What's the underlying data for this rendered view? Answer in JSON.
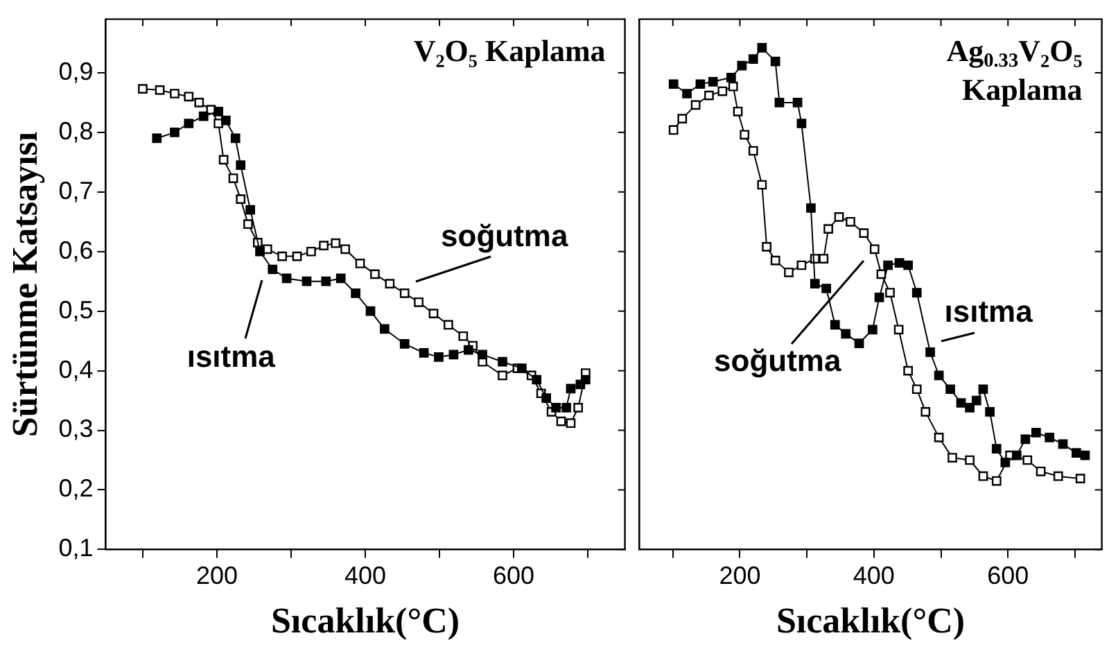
{
  "chart_data": [
    {
      "type": "line",
      "ylabel": "Sürtünme Katsayısı",
      "xlabel": "Sıcaklık(°C)",
      "annotations": [
        "V₂O₅ Kaplama"
      ],
      "xlim": [
        50,
        750
      ],
      "xticks": [
        {
          "value": 100,
          "label": null
        },
        200,
        {
          "value": 300,
          "label": null
        },
        400,
        {
          "value": 500,
          "label": null
        },
        600,
        {
          "value": 700,
          "label": null
        }
      ],
      "ylim": [
        0.1,
        0.99
      ],
      "yticks": [
        {
          "value": 0.1,
          "label": "0,1"
        },
        {
          "value": 0.2,
          "label": "0,2"
        },
        {
          "value": 0.3,
          "label": "0,3"
        },
        {
          "value": 0.4,
          "label": "0,4"
        },
        {
          "value": 0.5,
          "label": "0,5"
        },
        {
          "value": 0.6,
          "label": "0,6"
        },
        {
          "value": 0.7,
          "label": "0,7"
        },
        {
          "value": 0.8,
          "label": "0,8"
        },
        {
          "value": 0.9,
          "label": "0,9"
        }
      ],
      "marker": "square",
      "line_style": "solid",
      "grid": false,
      "series": [
        {
          "name": "ısıtma",
          "color": "#000000",
          "x": [
            119,
            143,
            162,
            182,
            202,
            212,
            225,
            232,
            245,
            258,
            275,
            294,
            321,
            347,
            367,
            387,
            407,
            426,
            453,
            479,
            499,
            519,
            539,
            558,
            585,
            611,
            631,
            644,
            657,
            671,
            677,
            690,
            697
          ],
          "values": [
            0.79,
            0.8,
            0.815,
            0.827,
            0.835,
            0.82,
            0.79,
            0.745,
            0.67,
            0.6,
            0.57,
            0.555,
            0.55,
            0.55,
            0.555,
            0.53,
            0.5,
            0.47,
            0.445,
            0.43,
            0.423,
            0.427,
            0.435,
            0.427,
            0.415,
            0.404,
            0.385,
            0.354,
            0.338,
            0.338,
            0.37,
            0.377,
            0.385
          ]
        },
        {
          "name": "soğutma",
          "color": "#000000",
          "x": [
            100,
            123,
            143,
            162,
            176,
            192,
            202,
            209,
            222,
            232,
            242,
            255,
            268,
            288,
            308,
            327,
            344,
            360,
            373,
            393,
            413,
            433,
            453,
            472,
            492,
            512,
            532,
            545,
            558,
            585,
            605,
            624,
            637,
            651,
            664,
            677,
            687,
            697
          ],
          "values": [
            0.873,
            0.871,
            0.865,
            0.86,
            0.85,
            0.838,
            0.815,
            0.754,
            0.723,
            0.688,
            0.646,
            0.615,
            0.604,
            0.592,
            0.592,
            0.6,
            0.61,
            0.614,
            0.604,
            0.58,
            0.562,
            0.546,
            0.53,
            0.515,
            0.496,
            0.477,
            0.458,
            0.442,
            0.415,
            0.392,
            0.404,
            0.392,
            0.362,
            0.331,
            0.315,
            0.312,
            0.338,
            0.396
          ]
        }
      ]
    },
    {
      "type": "line",
      "xlabel": "Sıcaklık(°C)",
      "annotations": [
        "Ag$_{0.33}$V₂O₅ Kaplama"
      ],
      "xlim": [
        50,
        740
      ],
      "xticks": [
        {
          "value": 100,
          "label": null
        },
        200,
        {
          "value": 300,
          "label": null
        },
        400,
        {
          "value": 500,
          "label": null
        },
        600,
        {
          "value": 700,
          "label": null
        }
      ],
      "ylim": [
        0.1,
        0.99
      ],
      "yticks": [
        0.1,
        0.2,
        0.3,
        0.4,
        0.5,
        0.6,
        0.7,
        0.8,
        0.9
      ],
      "tick_labels": "x",
      "marker": "square",
      "line_style": "solid",
      "grid": false,
      "series": [
        {
          "name": "ısıtma",
          "color": "#000000",
          "x": [
            101,
            121,
            141,
            160,
            187,
            203,
            220,
            233,
            253,
            259,
            286,
            292,
            306,
            312,
            329,
            342,
            358,
            378,
            398,
            408,
            421,
            438,
            451,
            464,
            484,
            497,
            514,
            530,
            543,
            553,
            563,
            573,
            583,
            596,
            613,
            626,
            642,
            662,
            682,
            702,
            715
          ],
          "values": [
            0.881,
            0.865,
            0.881,
            0.885,
            0.892,
            0.912,
            0.923,
            0.942,
            0.919,
            0.85,
            0.85,
            0.815,
            0.673,
            0.546,
            0.538,
            0.477,
            0.462,
            0.446,
            0.469,
            0.523,
            0.577,
            0.581,
            0.577,
            0.531,
            0.431,
            0.392,
            0.369,
            0.346,
            0.338,
            0.35,
            0.369,
            0.331,
            0.269,
            0.246,
            0.258,
            0.285,
            0.296,
            0.288,
            0.277,
            0.262,
            0.258
          ]
        },
        {
          "name": "soğutma",
          "color": "#000000",
          "x": [
            101,
            114,
            134,
            154,
            174,
            190,
            197,
            207,
            220,
            233,
            240,
            253,
            273,
            292,
            312,
            325,
            332,
            348,
            365,
            385,
            401,
            411,
            424,
            437,
            451,
            464,
            477,
            497,
            517,
            543,
            563,
            583,
            603,
            629,
            649,
            675,
            708
          ],
          "values": [
            0.804,
            0.823,
            0.846,
            0.862,
            0.869,
            0.877,
            0.835,
            0.796,
            0.769,
            0.712,
            0.608,
            0.585,
            0.565,
            0.577,
            0.588,
            0.588,
            0.638,
            0.658,
            0.65,
            0.631,
            0.604,
            0.562,
            0.531,
            0.469,
            0.4,
            0.369,
            0.331,
            0.288,
            0.254,
            0.25,
            0.223,
            0.215,
            0.258,
            0.25,
            0.231,
            0.223,
            0.219
          ]
        }
      ]
    }
  ]
}
